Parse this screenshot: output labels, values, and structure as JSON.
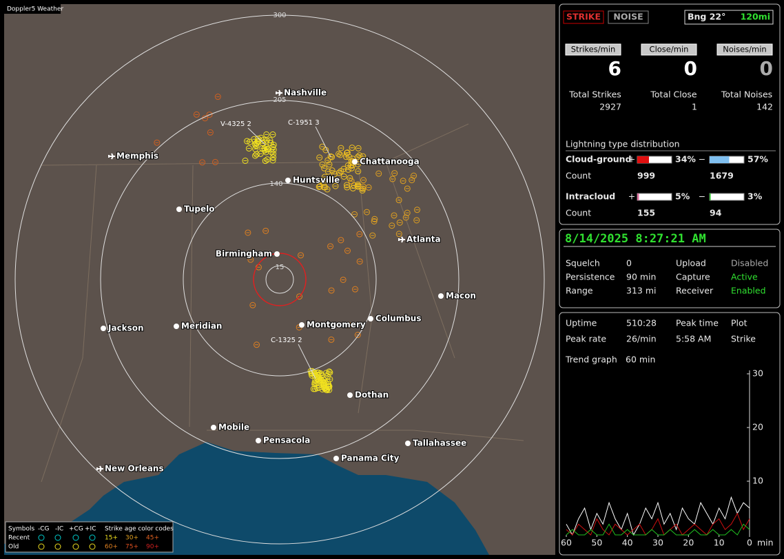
{
  "map": {
    "app_title": "Doppler5 Weather",
    "ring_labels": [
      "300",
      "205",
      "140",
      "15"
    ],
    "cities": [
      "Nashville",
      "Memphis",
      "Chattanooga",
      "Huntsville",
      "Tupelo",
      "Atlanta",
      "Birmingham",
      "Macon",
      "Jackson",
      "Meridian",
      "Montgomery",
      "Columbus",
      "Dothan",
      "Mobile",
      "Pensacola",
      "Tallahassee",
      "Panama City",
      "New Orleans"
    ],
    "annotations": [
      "V-4325 2",
      "C-1951 3",
      "C-1325 2"
    ],
    "legend": {
      "header": [
        "Symbols",
        "-CG",
        "-IC",
        "+CG",
        "+IC",
        "Strike age color codes"
      ],
      "rows": [
        "Recent",
        "Old"
      ],
      "recent_ages": [
        "15+",
        "30+",
        "45+"
      ],
      "old_ages": [
        "60+",
        "75+",
        "90+"
      ]
    }
  },
  "header": {
    "strike": "STRIKE",
    "noise": "NOISE",
    "bearing": "Bng 22°",
    "range": "120mi"
  },
  "stats": {
    "labels": [
      "Strikes/min",
      "Close/min",
      "Noises/min"
    ],
    "values": [
      "6",
      "0",
      "0"
    ],
    "total_labels": [
      "Total Strikes",
      "Total Close",
      "Total Noises"
    ],
    "totals": [
      "2927",
      "1",
      "142"
    ]
  },
  "distribution": {
    "title": "Lightning type distribution",
    "rows": [
      {
        "name": "Cloud-ground",
        "plus": {
          "value": 34,
          "label": "34%"
        },
        "minus": {
          "value": 57,
          "label": "57%"
        },
        "count_label": "Count",
        "counts": [
          "999",
          "1679"
        ]
      },
      {
        "name": "Intracloud",
        "plus": {
          "value": 5,
          "label": "5%"
        },
        "minus": {
          "value": 3,
          "label": "3%"
        },
        "count_label": "Count",
        "counts": [
          "155",
          "94"
        ]
      }
    ],
    "plus_sign": "+",
    "minus_sign": "−"
  },
  "status": {
    "datetime": "8/14/2025 8:27:21 AM",
    "items": [
      [
        "Squelch",
        "0",
        "Upload",
        "Disabled"
      ],
      [
        "Persistence",
        "90 min",
        "Capture",
        "Active"
      ],
      [
        "Range",
        "313 mi",
        "Receiver",
        "Enabled"
      ]
    ]
  },
  "info": {
    "items": [
      [
        "Uptime",
        "510:28",
        "Peak time",
        "Plot"
      ],
      [
        "Peak rate",
        "26/min",
        "5:58 AM",
        "Strike"
      ]
    ],
    "trend_label": "Trend graph",
    "trend_value": "60 min"
  },
  "chart_data": {
    "type": "line",
    "x_unit": "min",
    "x": [
      60,
      58,
      56,
      54,
      52,
      50,
      48,
      46,
      44,
      42,
      40,
      38,
      36,
      34,
      32,
      30,
      28,
      26,
      24,
      22,
      20,
      18,
      16,
      14,
      12,
      10,
      8,
      6,
      4,
      2,
      0
    ],
    "xlim": [
      60,
      0
    ],
    "xticks": [
      60,
      50,
      40,
      30,
      20,
      10,
      0
    ],
    "ylim": [
      0,
      30
    ],
    "yticks": [
      10,
      20,
      30
    ],
    "series": [
      {
        "color": "#ffffff",
        "values": [
          2,
          0,
          3,
          5,
          1,
          4,
          2,
          6,
          3,
          1,
          4,
          0,
          2,
          5,
          3,
          6,
          2,
          4,
          1,
          5,
          3,
          2,
          6,
          4,
          2,
          5,
          3,
          7,
          4,
          6,
          5
        ]
      },
      {
        "color": "#d01010",
        "values": [
          1,
          0,
          2,
          1,
          0,
          3,
          1,
          0,
          2,
          1,
          0,
          1,
          2,
          0,
          1,
          3,
          0,
          1,
          2,
          0,
          1,
          2,
          1,
          0,
          2,
          3,
          1,
          2,
          4,
          1,
          3
        ]
      },
      {
        "color": "#20c020",
        "values": [
          0,
          1,
          0,
          0,
          1,
          0,
          0,
          2,
          0,
          0,
          1,
          0,
          0,
          0,
          1,
          0,
          0,
          1,
          0,
          0,
          0,
          1,
          0,
          0,
          1,
          0,
          0,
          1,
          0,
          2,
          1
        ]
      }
    ]
  }
}
